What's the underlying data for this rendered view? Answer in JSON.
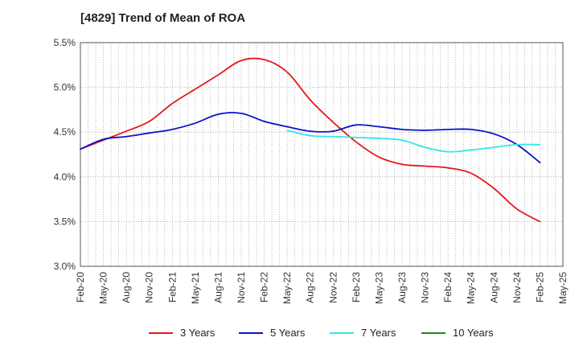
{
  "chart_data": {
    "type": "line",
    "title": "[4829]  Trend of Mean of ROA",
    "xlabel": "",
    "ylabel": "",
    "ylim": [
      3.0,
      5.5
    ],
    "yticks": [
      "3.0%",
      "3.5%",
      "4.0%",
      "4.5%",
      "5.0%",
      "5.5%"
    ],
    "categories": [
      "Feb-20",
      "May-20",
      "Aug-20",
      "Nov-20",
      "Feb-21",
      "May-21",
      "Aug-21",
      "Nov-21",
      "Feb-22",
      "May-22",
      "Aug-22",
      "Nov-22",
      "Feb-23",
      "May-23",
      "Aug-23",
      "Nov-23",
      "Feb-24",
      "May-24",
      "Aug-24",
      "Nov-24",
      "Feb-25",
      "May-25"
    ],
    "grid": true,
    "legend_position": "bottom",
    "series": [
      {
        "name": "3 Years",
        "color": "#e31a1c",
        "values": [
          4.31,
          4.41,
          4.51,
          4.62,
          4.82,
          4.98,
          5.14,
          5.3,
          5.31,
          5.17,
          4.86,
          4.61,
          4.39,
          4.22,
          4.14,
          4.12,
          4.1,
          4.04,
          3.87,
          3.64,
          3.5,
          null
        ]
      },
      {
        "name": "5 Years",
        "color": "#0a14c8",
        "values": [
          4.31,
          4.42,
          4.45,
          4.49,
          4.53,
          4.6,
          4.7,
          4.71,
          4.62,
          4.56,
          4.51,
          4.51,
          4.58,
          4.56,
          4.53,
          4.52,
          4.53,
          4.53,
          4.48,
          4.36,
          4.16,
          null
        ]
      },
      {
        "name": "7 Years",
        "color": "#33e6e6",
        "values": [
          null,
          null,
          null,
          null,
          null,
          null,
          null,
          null,
          null,
          4.52,
          4.46,
          4.45,
          4.44,
          4.43,
          4.41,
          4.33,
          4.28,
          4.3,
          4.33,
          4.36,
          4.36,
          null
        ]
      },
      {
        "name": "10 Years",
        "color": "#1a8a1a",
        "values": [
          null,
          null,
          null,
          null,
          null,
          null,
          null,
          null,
          null,
          null,
          null,
          null,
          null,
          null,
          null,
          null,
          null,
          null,
          null,
          null,
          null,
          null
        ]
      }
    ]
  }
}
